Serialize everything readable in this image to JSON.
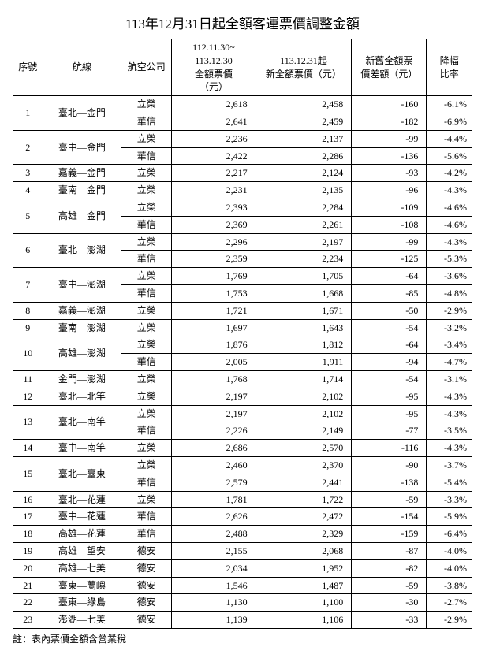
{
  "title": "113年12月31日起全額客運票價調整金額",
  "note": "註：表內票價金額含營業稅",
  "columns": {
    "idx": "序號",
    "route": "航線",
    "airline": "航空公司",
    "oldPrice": "112.11.30~\n113.12.30\n全額票價\n（元）",
    "newPrice": "113.12.31起\n新全額票價（元）",
    "diff": "新舊全額票\n價差額（元）",
    "rate": "降幅\n比率"
  },
  "rows": [
    {
      "idx": "1",
      "route": "臺北—金門",
      "sub": [
        {
          "airline": "立榮",
          "old": "2,618",
          "new": "2,458",
          "diff": "-160",
          "rate": "-6.1%"
        },
        {
          "airline": "華信",
          "old": "2,641",
          "new": "2,459",
          "diff": "-182",
          "rate": "-6.9%"
        }
      ]
    },
    {
      "idx": "2",
      "route": "臺中—金門",
      "sub": [
        {
          "airline": "立榮",
          "old": "2,236",
          "new": "2,137",
          "diff": "-99",
          "rate": "-4.4%"
        },
        {
          "airline": "華信",
          "old": "2,422",
          "new": "2,286",
          "diff": "-136",
          "rate": "-5.6%"
        }
      ]
    },
    {
      "idx": "3",
      "route": "嘉義—金門",
      "sub": [
        {
          "airline": "立榮",
          "old": "2,217",
          "new": "2,124",
          "diff": "-93",
          "rate": "-4.2%"
        }
      ]
    },
    {
      "idx": "4",
      "route": "臺南—金門",
      "sub": [
        {
          "airline": "立榮",
          "old": "2,231",
          "new": "2,135",
          "diff": "-96",
          "rate": "-4.3%"
        }
      ]
    },
    {
      "idx": "5",
      "route": "高雄—金門",
      "sub": [
        {
          "airline": "立榮",
          "old": "2,393",
          "new": "2,284",
          "diff": "-109",
          "rate": "-4.6%"
        },
        {
          "airline": "華信",
          "old": "2,369",
          "new": "2,261",
          "diff": "-108",
          "rate": "-4.6%"
        }
      ]
    },
    {
      "idx": "6",
      "route": "臺北—澎湖",
      "sub": [
        {
          "airline": "立榮",
          "old": "2,296",
          "new": "2,197",
          "diff": "-99",
          "rate": "-4.3%"
        },
        {
          "airline": "華信",
          "old": "2,359",
          "new": "2,234",
          "diff": "-125",
          "rate": "-5.3%"
        }
      ]
    },
    {
      "idx": "7",
      "route": "臺中—澎湖",
      "sub": [
        {
          "airline": "立榮",
          "old": "1,769",
          "new": "1,705",
          "diff": "-64",
          "rate": "-3.6%"
        },
        {
          "airline": "華信",
          "old": "1,753",
          "new": "1,668",
          "diff": "-85",
          "rate": "-4.8%"
        }
      ]
    },
    {
      "idx": "8",
      "route": "嘉義—澎湖",
      "sub": [
        {
          "airline": "立榮",
          "old": "1,721",
          "new": "1,671",
          "diff": "-50",
          "rate": "-2.9%"
        }
      ]
    },
    {
      "idx": "9",
      "route": "臺南—澎湖",
      "sub": [
        {
          "airline": "立榮",
          "old": "1,697",
          "new": "1,643",
          "diff": "-54",
          "rate": "-3.2%"
        }
      ]
    },
    {
      "idx": "10",
      "route": "高雄—澎湖",
      "sub": [
        {
          "airline": "立榮",
          "old": "1,876",
          "new": "1,812",
          "diff": "-64",
          "rate": "-3.4%"
        },
        {
          "airline": "華信",
          "old": "2,005",
          "new": "1,911",
          "diff": "-94",
          "rate": "-4.7%"
        }
      ]
    },
    {
      "idx": "11",
      "route": "金門—澎湖",
      "sub": [
        {
          "airline": "立榮",
          "old": "1,768",
          "new": "1,714",
          "diff": "-54",
          "rate": "-3.1%"
        }
      ]
    },
    {
      "idx": "12",
      "route": "臺北—北竿",
      "sub": [
        {
          "airline": "立榮",
          "old": "2,197",
          "new": "2,102",
          "diff": "-95",
          "rate": "-4.3%"
        }
      ]
    },
    {
      "idx": "13",
      "route": "臺北—南竿",
      "sub": [
        {
          "airline": "立榮",
          "old": "2,197",
          "new": "2,102",
          "diff": "-95",
          "rate": "-4.3%"
        },
        {
          "airline": "華信",
          "old": "2,226",
          "new": "2,149",
          "diff": "-77",
          "rate": "-3.5%"
        }
      ]
    },
    {
      "idx": "14",
      "route": "臺中—南竿",
      "sub": [
        {
          "airline": "立榮",
          "old": "2,686",
          "new": "2,570",
          "diff": "-116",
          "rate": "-4.3%"
        }
      ]
    },
    {
      "idx": "15",
      "route": "臺北—臺東",
      "sub": [
        {
          "airline": "立榮",
          "old": "2,460",
          "new": "2,370",
          "diff": "-90",
          "rate": "-3.7%"
        },
        {
          "airline": "華信",
          "old": "2,579",
          "new": "2,441",
          "diff": "-138",
          "rate": "-5.4%"
        }
      ]
    },
    {
      "idx": "16",
      "route": "臺北—花蓮",
      "sub": [
        {
          "airline": "立榮",
          "old": "1,781",
          "new": "1,722",
          "diff": "-59",
          "rate": "-3.3%"
        }
      ]
    },
    {
      "idx": "17",
      "route": "臺中—花蓮",
      "sub": [
        {
          "airline": "華信",
          "old": "2,626",
          "new": "2,472",
          "diff": "-154",
          "rate": "-5.9%"
        }
      ]
    },
    {
      "idx": "18",
      "route": "高雄—花蓮",
      "sub": [
        {
          "airline": "華信",
          "old": "2,488",
          "new": "2,329",
          "diff": "-159",
          "rate": "-6.4%"
        }
      ]
    },
    {
      "idx": "19",
      "route": "高雄—望安",
      "sub": [
        {
          "airline": "德安",
          "old": "2,155",
          "new": "2,068",
          "diff": "-87",
          "rate": "-4.0%"
        }
      ]
    },
    {
      "idx": "20",
      "route": "高雄—七美",
      "sub": [
        {
          "airline": "德安",
          "old": "2,034",
          "new": "1,952",
          "diff": "-82",
          "rate": "-4.0%"
        }
      ]
    },
    {
      "idx": "21",
      "route": "臺東—蘭嶼",
      "sub": [
        {
          "airline": "德安",
          "old": "1,546",
          "new": "1,487",
          "diff": "-59",
          "rate": "-3.8%"
        }
      ]
    },
    {
      "idx": "22",
      "route": "臺東—綠島",
      "sub": [
        {
          "airline": "德安",
          "old": "1,130",
          "new": "1,100",
          "diff": "-30",
          "rate": "-2.7%"
        }
      ]
    },
    {
      "idx": "23",
      "route": "澎湖—七美",
      "sub": [
        {
          "airline": "德安",
          "old": "1,139",
          "new": "1,106",
          "diff": "-33",
          "rate": "-2.9%"
        }
      ]
    }
  ],
  "style": {
    "border_color": "#000000",
    "background_color": "#ffffff",
    "header_fontsize": 12,
    "cell_fontsize": 12,
    "title_fontsize": 17
  }
}
